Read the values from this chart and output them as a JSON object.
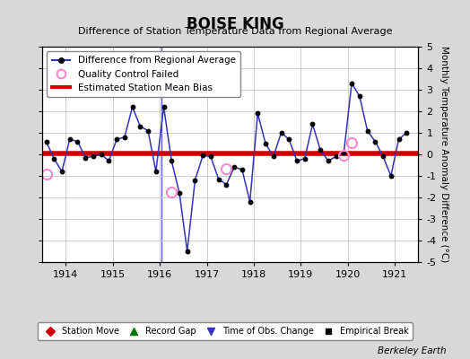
{
  "title": "BOISE KING",
  "subtitle": "Difference of Station Temperature Data from Regional Average",
  "ylabel": "Monthly Temperature Anomaly Difference (°C)",
  "xlim": [
    1913.5,
    1921.5
  ],
  "ylim": [
    -5,
    5
  ],
  "yticks": [
    -5,
    -4,
    -3,
    -2,
    -1,
    0,
    1,
    2,
    3,
    4,
    5
  ],
  "xticks": [
    1914,
    1915,
    1916,
    1917,
    1918,
    1919,
    1920,
    1921
  ],
  "background_color": "#d8d8d8",
  "plot_bg_color": "#ffffff",
  "grid_color": "#cccccc",
  "bias_line_y": 0.05,
  "bias_line_color": "#cc0000",
  "line_color": "#3333bb",
  "marker_color": "#000000",
  "qc_fail_color": "#ff88cc",
  "time_series_x": [
    1913.583,
    1913.75,
    1913.917,
    1914.083,
    1914.25,
    1914.417,
    1914.583,
    1914.75,
    1914.917,
    1915.083,
    1915.25,
    1915.417,
    1915.583,
    1915.75,
    1915.917,
    1916.083,
    1916.25,
    1916.417,
    1916.583,
    1916.75,
    1916.917,
    1917.083,
    1917.25,
    1917.417,
    1917.583,
    1917.75,
    1917.917,
    1918.083,
    1918.25,
    1918.417,
    1918.583,
    1918.75,
    1918.917,
    1919.083,
    1919.25,
    1919.417,
    1919.583,
    1919.75,
    1919.917,
    1920.083,
    1920.25,
    1920.417,
    1920.583,
    1920.75,
    1920.917,
    1921.083,
    1921.25
  ],
  "time_series_y": [
    0.6,
    -0.2,
    -0.8,
    0.7,
    0.6,
    -0.15,
    -0.1,
    0.0,
    -0.3,
    0.7,
    0.8,
    2.2,
    1.3,
    1.1,
    -0.8,
    2.2,
    -0.3,
    -1.8,
    -4.5,
    -1.2,
    -0.05,
    -0.1,
    -1.15,
    -1.4,
    -0.6,
    -0.7,
    -2.2,
    1.9,
    0.5,
    -0.1,
    1.0,
    0.7,
    -0.3,
    -0.2,
    1.4,
    0.2,
    -0.3,
    -0.1,
    0.1,
    3.3,
    2.7,
    1.1,
    0.6,
    -0.1,
    -1.0,
    0.7,
    1.0
  ],
  "qc_fail_points": [
    [
      1913.583,
      -0.9
    ],
    [
      1916.25,
      -1.75
    ],
    [
      1917.417,
      -0.65
    ],
    [
      1919.917,
      -0.05
    ],
    [
      1920.083,
      0.55
    ]
  ],
  "time_obs_change_x": 1916.04,
  "berkeley_earth_text": "Berkeley Earth"
}
